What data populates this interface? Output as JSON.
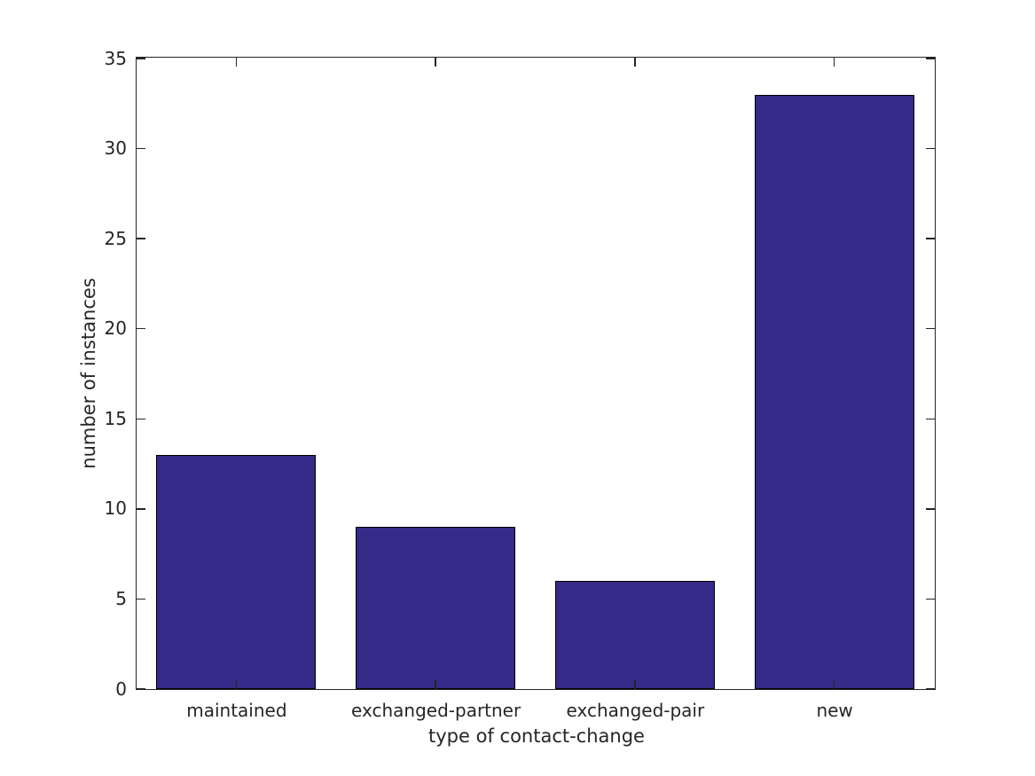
{
  "figure": {
    "background_color": "#ffffff",
    "axis_color": "#262626",
    "text_color": "#262626"
  },
  "chart_data": {
    "type": "bar",
    "title": "",
    "categories": [
      "maintained",
      "exchanged-partner",
      "exchanged-pair",
      "new"
    ],
    "values": [
      13,
      9,
      6,
      33
    ],
    "xlabel": "type of contact-change",
    "ylabel": "number of instances",
    "ylim": [
      0,
      35
    ],
    "yticks": [
      0,
      5,
      10,
      15,
      20,
      25,
      30,
      35
    ],
    "bar_color": "#352a87",
    "bar_edge_color": "#000000",
    "bar_width_fraction": 0.8,
    "grid": false,
    "legend_position": "none",
    "tick_direction": "in",
    "box": true
  }
}
